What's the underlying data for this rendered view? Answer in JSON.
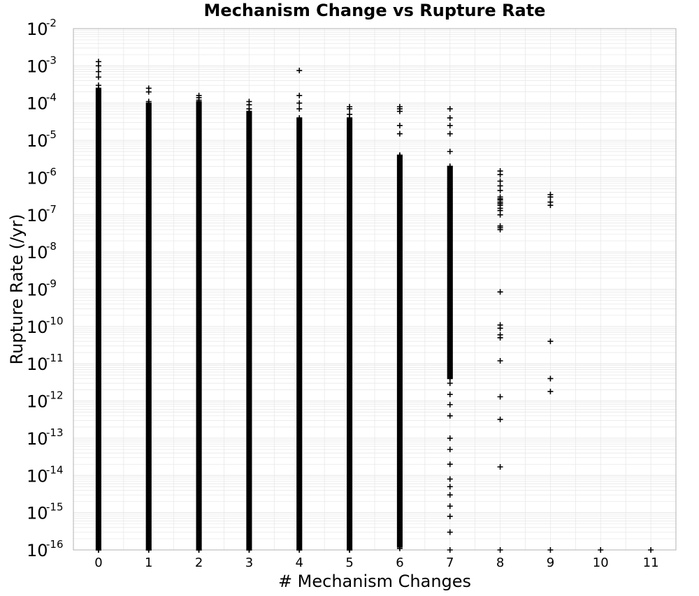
{
  "chart_data": {
    "type": "scatter",
    "title": "Mechanism Change vs Rupture Rate",
    "xlabel": "# Mechanism Changes",
    "ylabel": "Rupture Rate (/yr)",
    "x_ticks": [
      0,
      1,
      2,
      3,
      4,
      5,
      6,
      7,
      8,
      9,
      10,
      11
    ],
    "xlim": [
      -0.5,
      11.5
    ],
    "y_scale": "log",
    "ylim": [
      1e-16,
      0.01
    ],
    "y_ticks": [
      {
        "base": "10",
        "exp": "-2",
        "value": 0.01
      },
      {
        "base": "10",
        "exp": "-3",
        "value": 0.001
      },
      {
        "base": "10",
        "exp": "-4",
        "value": 0.0001
      },
      {
        "base": "10",
        "exp": "-5",
        "value": 1e-05
      },
      {
        "base": "10",
        "exp": "-6",
        "value": 1e-06
      },
      {
        "base": "10",
        "exp": "-7",
        "value": 1e-07
      },
      {
        "base": "10",
        "exp": "-8",
        "value": 1e-08
      },
      {
        "base": "10",
        "exp": "-9",
        "value": 1e-09
      },
      {
        "base": "10",
        "exp": "-10",
        "value": 1e-10
      },
      {
        "base": "10",
        "exp": "-11",
        "value": 1e-11
      },
      {
        "base": "10",
        "exp": "-12",
        "value": 1e-12
      },
      {
        "base": "10",
        "exp": "-13",
        "value": 1e-13
      },
      {
        "base": "10",
        "exp": "-14",
        "value": 1e-14
      },
      {
        "base": "10",
        "exp": "-15",
        "value": 1e-15
      },
      {
        "base": "10",
        "exp": "-16",
        "value": 1e-16
      }
    ],
    "grid": true,
    "marker": "plus",
    "marker_color": "#000000",
    "grid_color": "#e6e6e6",
    "series": [
      {
        "points": [
          {
            "x": 0,
            "y": 0.0013
          },
          {
            "x": 0,
            "y": 0.001
          },
          {
            "x": 0,
            "y": 0.0007
          },
          {
            "x": 0,
            "y": 0.0005
          },
          {
            "x": 0,
            "y": 0.0003
          },
          {
            "x": 0,
            "y": 1e-16
          },
          {
            "x": 1,
            "y": 0.00025
          },
          {
            "x": 1,
            "y": 0.0002
          },
          {
            "x": 1,
            "y": 0.00011
          },
          {
            "x": 1,
            "y": 1e-16
          },
          {
            "x": 2,
            "y": 0.00016
          },
          {
            "x": 2,
            "y": 0.00014
          },
          {
            "x": 2,
            "y": 0.00012
          },
          {
            "x": 2,
            "y": 1e-16
          },
          {
            "x": 3,
            "y": 0.00011
          },
          {
            "x": 3,
            "y": 9e-05
          },
          {
            "x": 3,
            "y": 7e-05
          },
          {
            "x": 3,
            "y": 1e-16
          },
          {
            "x": 4,
            "y": 0.00075
          },
          {
            "x": 4,
            "y": 0.00016
          },
          {
            "x": 4,
            "y": 0.0001
          },
          {
            "x": 4,
            "y": 7e-05
          },
          {
            "x": 4,
            "y": 1e-16
          },
          {
            "x": 5,
            "y": 8e-05
          },
          {
            "x": 5,
            "y": 7e-05
          },
          {
            "x": 5,
            "y": 5e-05
          },
          {
            "x": 5,
            "y": 1e-16
          },
          {
            "x": 6,
            "y": 8e-05
          },
          {
            "x": 6,
            "y": 7e-05
          },
          {
            "x": 6,
            "y": 6e-05
          },
          {
            "x": 6,
            "y": 2.5e-05
          },
          {
            "x": 6,
            "y": 1.5e-05
          },
          {
            "x": 6,
            "y": 1.1e-16
          },
          {
            "x": 7,
            "y": 7e-05
          },
          {
            "x": 7,
            "y": 4e-05
          },
          {
            "x": 7,
            "y": 2.5e-05
          },
          {
            "x": 7,
            "y": 1.5e-05
          },
          {
            "x": 7,
            "y": 5e-06
          },
          {
            "x": 7,
            "y": 2e-06
          },
          {
            "x": 7,
            "y": 5e-07
          },
          {
            "x": 7,
            "y": 3e-12
          },
          {
            "x": 7,
            "y": 1.5e-12
          },
          {
            "x": 7,
            "y": 8e-13
          },
          {
            "x": 7,
            "y": 4e-13
          },
          {
            "x": 7,
            "y": 1e-13
          },
          {
            "x": 7,
            "y": 5e-14
          },
          {
            "x": 7,
            "y": 2e-14
          },
          {
            "x": 7,
            "y": 8e-15
          },
          {
            "x": 7,
            "y": 5e-15
          },
          {
            "x": 7,
            "y": 3e-15
          },
          {
            "x": 7,
            "y": 1.5e-15
          },
          {
            "x": 7,
            "y": 8e-16
          },
          {
            "x": 7,
            "y": 3e-16
          },
          {
            "x": 7,
            "y": 1e-16
          },
          {
            "x": 8,
            "y": 1.5e-06
          },
          {
            "x": 8,
            "y": 1.2e-06
          },
          {
            "x": 8,
            "y": 8e-07
          },
          {
            "x": 8,
            "y": 6e-07
          },
          {
            "x": 8,
            "y": 4.5e-07
          },
          {
            "x": 8,
            "y": 3e-07
          },
          {
            "x": 8,
            "y": 2.7e-07
          },
          {
            "x": 8,
            "y": 2.5e-07
          },
          {
            "x": 8,
            "y": 2.2e-07
          },
          {
            "x": 8,
            "y": 2e-07
          },
          {
            "x": 8,
            "y": 1.8e-07
          },
          {
            "x": 8,
            "y": 1.5e-07
          },
          {
            "x": 8,
            "y": 1.3e-07
          },
          {
            "x": 8,
            "y": 1e-07
          },
          {
            "x": 8,
            "y": 5e-08
          },
          {
            "x": 8,
            "y": 4.5e-08
          },
          {
            "x": 8,
            "y": 4e-08
          },
          {
            "x": 8,
            "y": 8.5e-10
          },
          {
            "x": 8,
            "y": 1.1e-10
          },
          {
            "x": 8,
            "y": 9e-11
          },
          {
            "x": 8,
            "y": 6e-11
          },
          {
            "x": 8,
            "y": 5e-11
          },
          {
            "x": 8,
            "y": 1.2e-11
          },
          {
            "x": 8,
            "y": 1.3e-12
          },
          {
            "x": 8,
            "y": 3.2e-13
          },
          {
            "x": 8,
            "y": 1.7e-14
          },
          {
            "x": 8,
            "y": 1e-16
          },
          {
            "x": 9,
            "y": 3.5e-07
          },
          {
            "x": 9,
            "y": 3e-07
          },
          {
            "x": 9,
            "y": 2.2e-07
          },
          {
            "x": 9,
            "y": 1.8e-07
          },
          {
            "x": 9,
            "y": 4e-11
          },
          {
            "x": 9,
            "y": 4e-12
          },
          {
            "x": 9,
            "y": 1.8e-12
          },
          {
            "x": 9,
            "y": 1e-16
          },
          {
            "x": 10,
            "y": 1e-16
          },
          {
            "x": 11,
            "y": 1e-16
          }
        ],
        "columns": [
          {
            "x": 0,
            "y_from": 1e-16,
            "y_to": 0.00025
          },
          {
            "x": 1,
            "y_from": 1e-16,
            "y_to": 0.0001
          },
          {
            "x": 2,
            "y_from": 1e-16,
            "y_to": 0.00011
          },
          {
            "x": 3,
            "y_from": 1e-16,
            "y_to": 6e-05
          },
          {
            "x": 4,
            "y_from": 1e-16,
            "y_to": 4e-05
          },
          {
            "x": 5,
            "y_from": 1e-16,
            "y_to": 4e-05
          },
          {
            "x": 6,
            "y_from": 1.2e-16,
            "y_to": 4e-06
          },
          {
            "x": 7,
            "y_from": 4e-12,
            "y_to": 2e-06
          }
        ]
      }
    ]
  }
}
